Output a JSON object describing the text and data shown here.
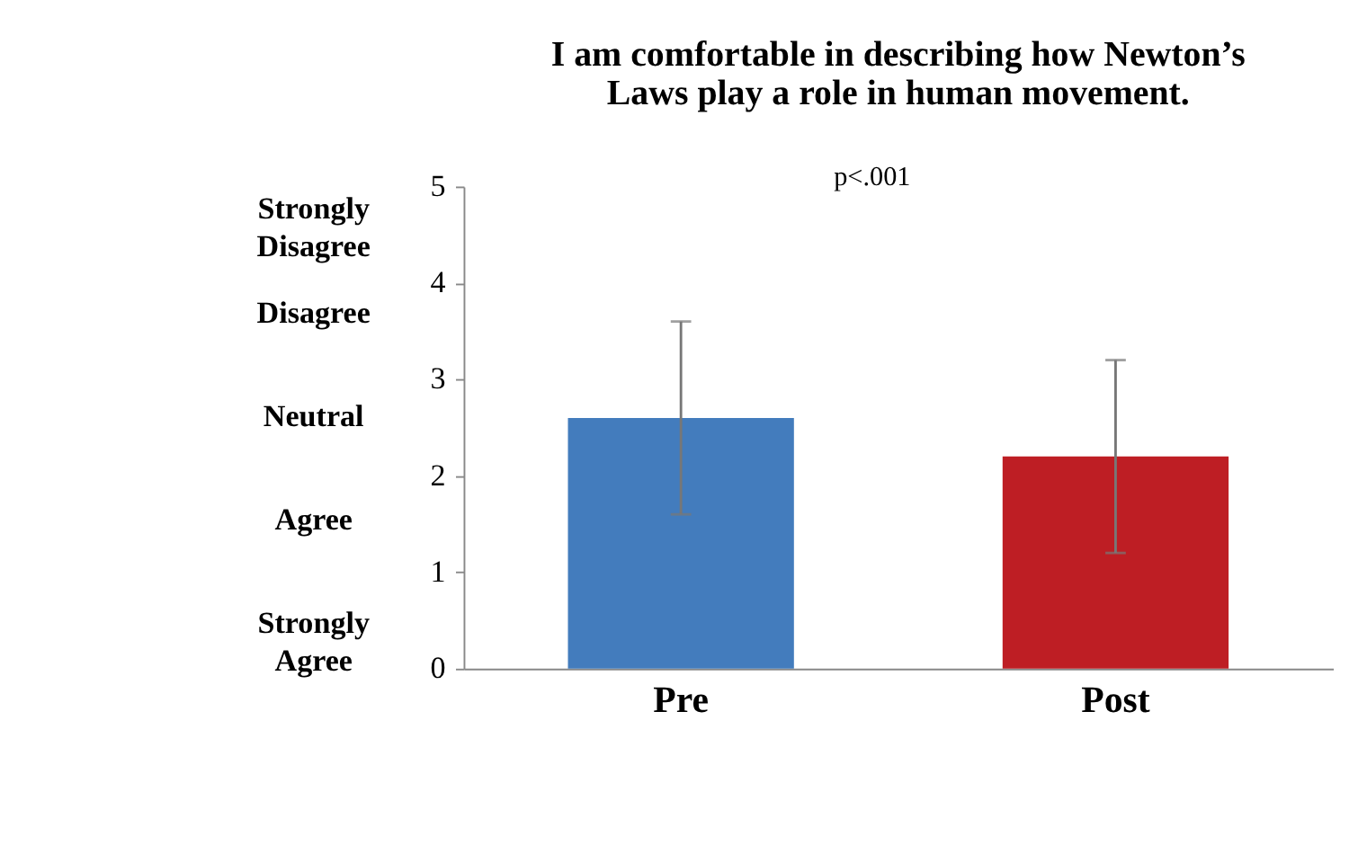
{
  "chart_data": {
    "type": "bar",
    "title": "I am comfortable in describing how Newton’s Laws play a role in human movement.",
    "categories": [
      "Pre",
      "Post"
    ],
    "values": [
      2.6,
      2.2
    ],
    "errors": [
      1.0,
      1.0
    ],
    "colors": [
      "#437cbd",
      "#be1e24"
    ],
    "ylim": [
      0,
      5
    ],
    "yticks": [
      0,
      1,
      2,
      3,
      4,
      5
    ],
    "grid": false,
    "annotations": [
      "p<.001",
      "Strongly Disagree",
      "Disagree",
      "Neutral",
      "Agree",
      "Strongly Agree"
    ]
  }
}
